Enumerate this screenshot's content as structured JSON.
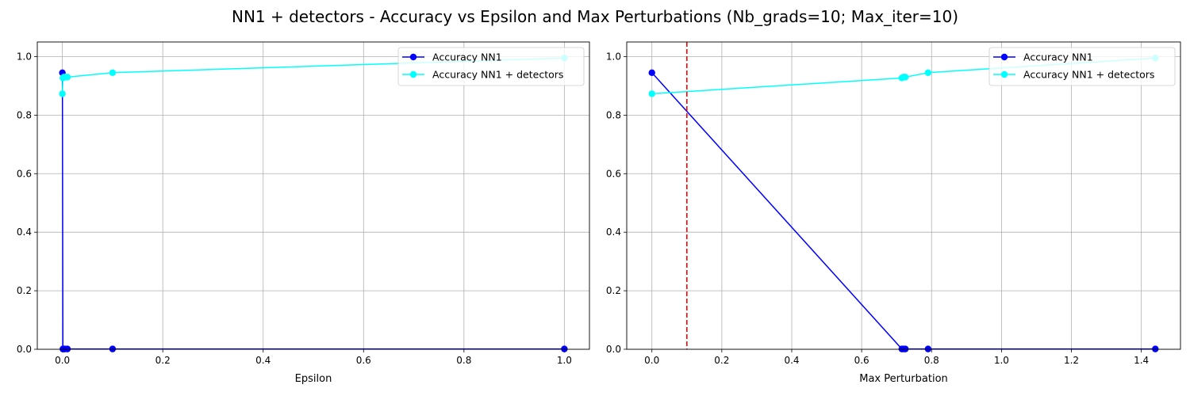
{
  "figure": {
    "title": "NN1 + detectors - Accuracy vs Epsilon and Max Perturbations (Nb_grads=10; Max_iter=10)"
  },
  "chart_data": [
    {
      "type": "line",
      "title": "",
      "xlabel": "Epsilon",
      "ylabel": "",
      "xlim": [
        -0.05,
        1.05
      ],
      "ylim": [
        0,
        1.05
      ],
      "xticks": [
        0.0,
        0.2,
        0.4,
        0.6,
        0.8,
        1.0
      ],
      "xtick_labels": [
        "0.0",
        "0.2",
        "0.4",
        "0.6",
        "0.8",
        "1.0"
      ],
      "yticks": [
        0.0,
        0.2,
        0.4,
        0.6,
        0.8,
        1.0
      ],
      "ytick_labels": [
        "0.0",
        "0.2",
        "0.4",
        "0.6",
        "0.8",
        "1.0"
      ],
      "grid": true,
      "legend_position": "upper right",
      "vlines": [],
      "series": [
        {
          "name": "Accuracy NN1",
          "color": "#0000ff",
          "x": [
            0.0,
            0.001,
            0.003,
            0.005,
            0.01,
            0.1,
            1.0
          ],
          "y": [
            0.945,
            0.001,
            0.001,
            0.001,
            0.001,
            0.001,
            0.001
          ]
        },
        {
          "name": "Accuracy NN1 + detectors",
          "color": "#00ffff",
          "x": [
            0.0,
            0.001,
            0.003,
            0.005,
            0.01,
            0.1,
            1.0
          ],
          "y": [
            0.873,
            0.927,
            0.93,
            0.93,
            0.93,
            0.945,
            0.995
          ]
        }
      ]
    },
    {
      "type": "line",
      "title": "",
      "xlabel": "Max Perturbation",
      "ylabel": "",
      "xlim": [
        -0.072,
        1.512
      ],
      "ylim": [
        0,
        1.05
      ],
      "xticks": [
        0.0,
        0.2,
        0.4,
        0.6,
        0.8,
        1.0,
        1.2,
        1.4
      ],
      "xtick_labels": [
        "0.0",
        "0.2",
        "0.4",
        "0.6",
        "0.8",
        "1.0",
        "1.2",
        "1.4"
      ],
      "yticks": [
        0.0,
        0.2,
        0.4,
        0.6,
        0.8,
        1.0
      ],
      "ytick_labels": [
        "0.0",
        "0.2",
        "0.4",
        "0.6",
        "0.8",
        "1.0"
      ],
      "grid": true,
      "legend_position": "upper right",
      "vlines": [
        {
          "x": 0.1,
          "color": "#ff0000",
          "style": "dashed"
        }
      ],
      "series": [
        {
          "name": "Accuracy NN1",
          "color": "#0000ff",
          "x": [
            0.0,
            0.715,
            0.72,
            0.725,
            0.79,
            1.44
          ],
          "y": [
            0.945,
            0.001,
            0.001,
            0.001,
            0.001,
            0.001
          ]
        },
        {
          "name": "Accuracy NN1 + detectors",
          "color": "#00ffff",
          "x": [
            0.0,
            0.715,
            0.72,
            0.725,
            0.79,
            1.44
          ],
          "y": [
            0.873,
            0.927,
            0.93,
            0.93,
            0.945,
            0.995
          ]
        }
      ]
    }
  ]
}
